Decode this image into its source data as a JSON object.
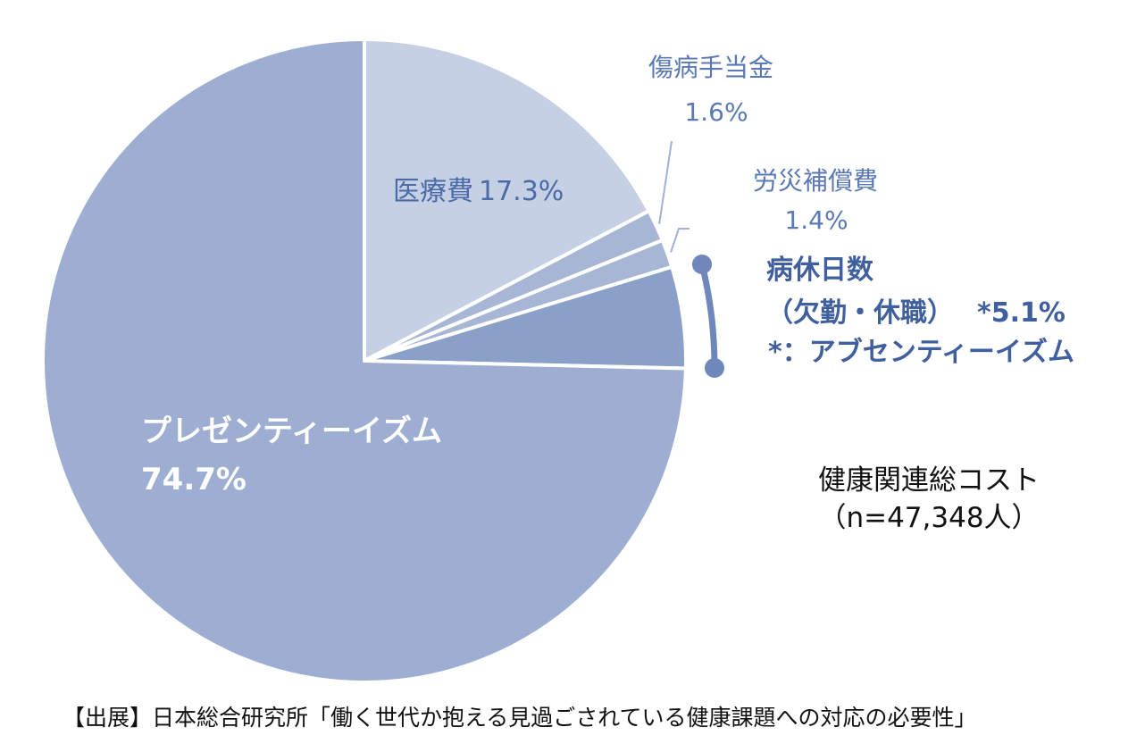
{
  "chart_data": {
    "type": "pie",
    "title": "",
    "categories": [
      "医療費",
      "傷病手当金",
      "労災補償費",
      "病休日数（欠勤・休職）",
      "プレゼンティーイズム"
    ],
    "values": [
      17.3,
      1.6,
      1.4,
      5.1,
      74.7
    ],
    "unit": "%",
    "colors": [
      "#c5d0e4",
      "#a7b6d5",
      "#a7b6d5",
      "#8aa0c9",
      "#9daed2"
    ],
    "labels": {
      "medical": {
        "name": "医療費",
        "value": "17.3%"
      },
      "sick_allowance": {
        "name": "傷病手当金",
        "value": "1.6%"
      },
      "workers_comp": {
        "name": "労災補償費",
        "value": "1.4%"
      },
      "sick_leave": {
        "name": "病休日数",
        "detail": "（欠勤・休職）",
        "value": "*5.1%",
        "note": "*：アブセンティーイズム"
      },
      "presenteeism": {
        "name": "プレゼンティーイズム",
        "value": "74.7%"
      }
    },
    "total_label": "健康関連総コスト",
    "sample_size": "（n=47,348人）",
    "source": "【出展】日本総合研究所「働く世代か抱える見過ごされている健康課題への対応の必要性」"
  }
}
